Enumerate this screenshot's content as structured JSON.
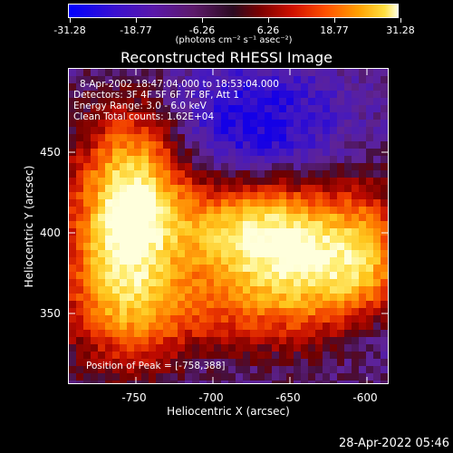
{
  "colorbar": {
    "tick_labels": [
      "-31.28",
      "-18.77",
      "-6.26",
      "6.26",
      "18.77",
      "31.28"
    ],
    "units": "(photons cm⁻² s⁻¹ asec⁻²)"
  },
  "title": "Reconstructed RHESSI Image",
  "info": {
    "line1": "8-Apr-2002 18:47:04.000 to 18:53:04.000",
    "line2": "Detectors: 3F 4F 5F 6F 7F 8F, Att 1",
    "line3": "Energy Range: 3.0 - 6.0 keV",
    "line4": "Clean    Total counts: 1.62E+04",
    "peak": "Position of Peak = [-758,388]"
  },
  "axes": {
    "xlabel": "Heliocentric X (arcsec)",
    "ylabel": "Heliocentric Y (arcsec)",
    "xticks": [
      "-750",
      "-700",
      "-650",
      "-600"
    ],
    "yticks": [
      "450",
      "400",
      "350"
    ]
  },
  "timestamp": "28-Apr-2022 05:46",
  "colors": {
    "background": "#000000",
    "foreground": "#ffffff"
  }
}
